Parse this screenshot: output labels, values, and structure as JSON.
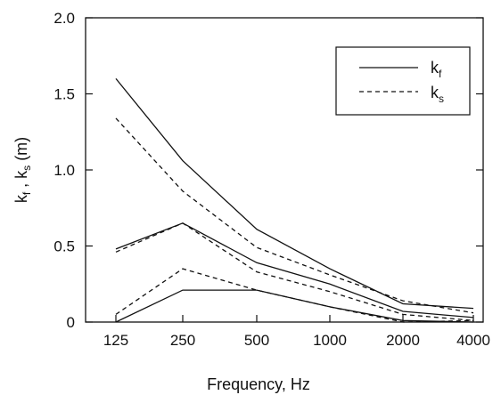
{
  "chart_data": {
    "type": "line",
    "title": "",
    "xlabel": "Frequency, Hz",
    "ylabel": {
      "parts": [
        "k",
        "f",
        " ,  k",
        "s",
        " (m)"
      ]
    },
    "categories": [
      "125",
      "250",
      "500",
      "1000",
      "2000",
      "4000"
    ],
    "ylim": [
      0,
      2.0
    ],
    "yticks": [
      "0",
      "0.5",
      "1.0",
      "1.5",
      "2.0"
    ],
    "yticks_values": [
      0,
      0.5,
      1.0,
      1.5,
      2.0
    ],
    "grid": false,
    "legend_position": "top-right",
    "legend": [
      {
        "main": "k",
        "sub": "f",
        "dash": "solid",
        "color": "#111111"
      },
      {
        "main": "k",
        "sub": "s",
        "dash": "dashed",
        "color": "#111111"
      }
    ],
    "series": [
      {
        "legend": 0,
        "dash": "solid",
        "values": [
          1.6,
          1.06,
          0.61,
          0.35,
          0.12,
          0.09
        ]
      },
      {
        "legend": 1,
        "dash": "dashed",
        "values": [
          1.34,
          0.86,
          0.49,
          0.31,
          0.14,
          0.06
        ]
      },
      {
        "legend": 0,
        "dash": "solid",
        "values": [
          0.48,
          0.65,
          0.39,
          0.25,
          0.07,
          0.03
        ]
      },
      {
        "legend": 1,
        "dash": "dashed",
        "values": [
          0.46,
          0.65,
          0.33,
          0.2,
          0.05,
          0.01
        ]
      },
      {
        "legend": 1,
        "dash": "dashed",
        "values": [
          0.05,
          0.35,
          0.21,
          0.1,
          0.0,
          0.01
        ]
      },
      {
        "legend": 0,
        "dash": "solid",
        "values": [
          0.0,
          0.21,
          0.21,
          0.1,
          0.01,
          0.0
        ]
      }
    ]
  }
}
